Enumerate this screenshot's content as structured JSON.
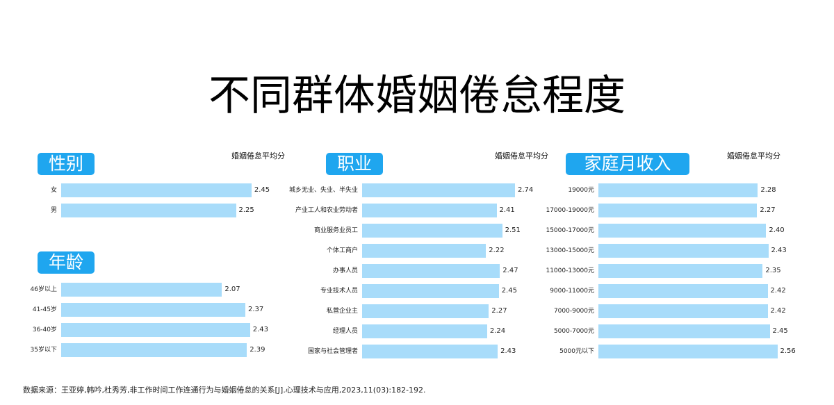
{
  "title": "不同群体婚姻倦怠程度",
  "source": "数据来源：王亚婷,韩吟,杜秀芳,非工作时间工作连通行为与婚姻倦怠的关系[J].心理技术与应用,2023,11(03):182-192.",
  "colors": {
    "badge": "#1fa6ef",
    "bar": "#a8dcfa"
  },
  "chart_data": [
    {
      "type": "bar",
      "orientation": "horizontal",
      "title": "性别",
      "ylabel": "婚姻倦怠平均分",
      "xlim": [
        0,
        2.8
      ],
      "categories": [
        "女",
        "男"
      ],
      "values": [
        2.45,
        2.25
      ],
      "value_labels": [
        "2.45",
        "2.25"
      ]
    },
    {
      "type": "bar",
      "orientation": "horizontal",
      "title": "年龄",
      "ylabel": "",
      "xlim": [
        0,
        2.8
      ],
      "categories": [
        "46岁以上",
        "41-45岁",
        "36-40岁",
        "35岁以下"
      ],
      "values": [
        2.07,
        2.37,
        2.43,
        2.39
      ],
      "value_labels": [
        "2.07",
        "2.37",
        "2.43",
        "2.39"
      ]
    },
    {
      "type": "bar",
      "orientation": "horizontal",
      "title": "职业",
      "ylabel": "婚姻倦怠平均分",
      "xlim": [
        0,
        2.8
      ],
      "categories": [
        "城乡无业、失业、半失业",
        "产业工人和农业劳动者",
        "商业服务业员工",
        "个体工商户",
        "办事人员",
        "专业技术人员",
        "私营企业主",
        "经理人员",
        "国家与社会管理者"
      ],
      "values": [
        2.74,
        2.41,
        2.51,
        2.22,
        2.47,
        2.45,
        2.27,
        2.24,
        2.43
      ],
      "value_labels": [
        "2.74",
        "2.41",
        "2.51",
        "2.22",
        "2.47",
        "2.45",
        "2.27",
        "2.24",
        "2.43"
      ]
    },
    {
      "type": "bar",
      "orientation": "horizontal",
      "title": "家庭月收入",
      "ylabel": "婚姻倦怠平均分",
      "xlim": [
        0,
        2.8
      ],
      "categories": [
        "19000元",
        "17000-19000元",
        "15000-17000元",
        "13000-15000元",
        "11000-13000元",
        "9000-11000元",
        "7000-9000元",
        "5000-7000元",
        "5000元以下"
      ],
      "values": [
        2.28,
        2.27,
        2.4,
        2.43,
        2.35,
        2.42,
        2.42,
        2.45,
        2.56
      ],
      "value_labels": [
        "2.28",
        "2.27",
        "2.40",
        "2.43",
        "2.35",
        "2.42",
        "2.42",
        "2.45",
        "2.56"
      ]
    }
  ]
}
